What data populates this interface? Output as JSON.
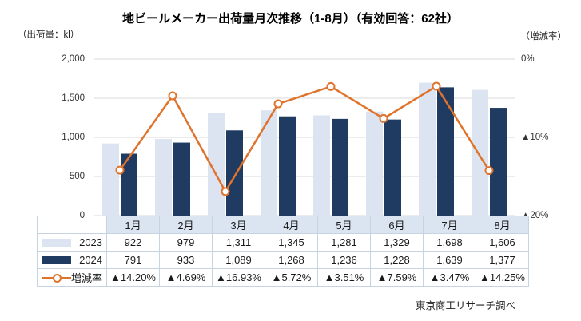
{
  "chart_data": {
    "type": "bar+line",
    "title": "地ビールメーカー出荷量月次推移（1-8月）（有効回答：62社）",
    "left_axis_label": "（出荷量：kl）",
    "right_axis_label": "（増減率）",
    "categories": [
      "1月",
      "2月",
      "3月",
      "4月",
      "5月",
      "6月",
      "7月",
      "8月"
    ],
    "left_axis": {
      "min": 0,
      "max": 2000,
      "tick_labels": [
        "2,000",
        "1,500",
        "1,000",
        "500",
        "0"
      ]
    },
    "right_axis": {
      "min": -20,
      "max": 0,
      "tick_labels": [
        "0%",
        "▲10%",
        "▲20%"
      ]
    },
    "grid": true,
    "legend_position": "table-left-column",
    "series": [
      {
        "name": "2023",
        "type": "bar",
        "color": "#dce4f1",
        "values": [
          922,
          979,
          1311,
          1345,
          1281,
          1329,
          1698,
          1606
        ],
        "labels": [
          "922",
          "979",
          "1,311",
          "1,345",
          "1,281",
          "1,329",
          "1,698",
          "1,606"
        ]
      },
      {
        "name": "2024",
        "type": "bar",
        "color": "#203b61",
        "values": [
          791,
          933,
          1089,
          1268,
          1236,
          1228,
          1639,
          1377
        ],
        "labels": [
          "791",
          "933",
          "1,089",
          "1,268",
          "1,236",
          "1,228",
          "1,639",
          "1,377"
        ]
      },
      {
        "name": "増減率",
        "type": "line",
        "color": "#e0732c",
        "marker": "open-circle",
        "values": [
          -14.2,
          -4.69,
          -16.93,
          -5.72,
          -3.51,
          -7.59,
          -3.47,
          -14.25
        ],
        "labels": [
          "▲14.20%",
          "▲4.69%",
          "▲16.93%",
          "▲5.72%",
          "▲3.51%",
          "▲7.59%",
          "▲3.47%",
          "▲14.25%"
        ]
      }
    ],
    "source": "東京商工リサーチ調べ"
  },
  "colors": {
    "bar_2023": "#dce4f1",
    "bar_2024": "#203b61",
    "rate_line": "#e0732c",
    "grid_line": "#d9d9d9",
    "table_border": "#c6d3e1",
    "month_header_bg": "#dbe5f2"
  }
}
